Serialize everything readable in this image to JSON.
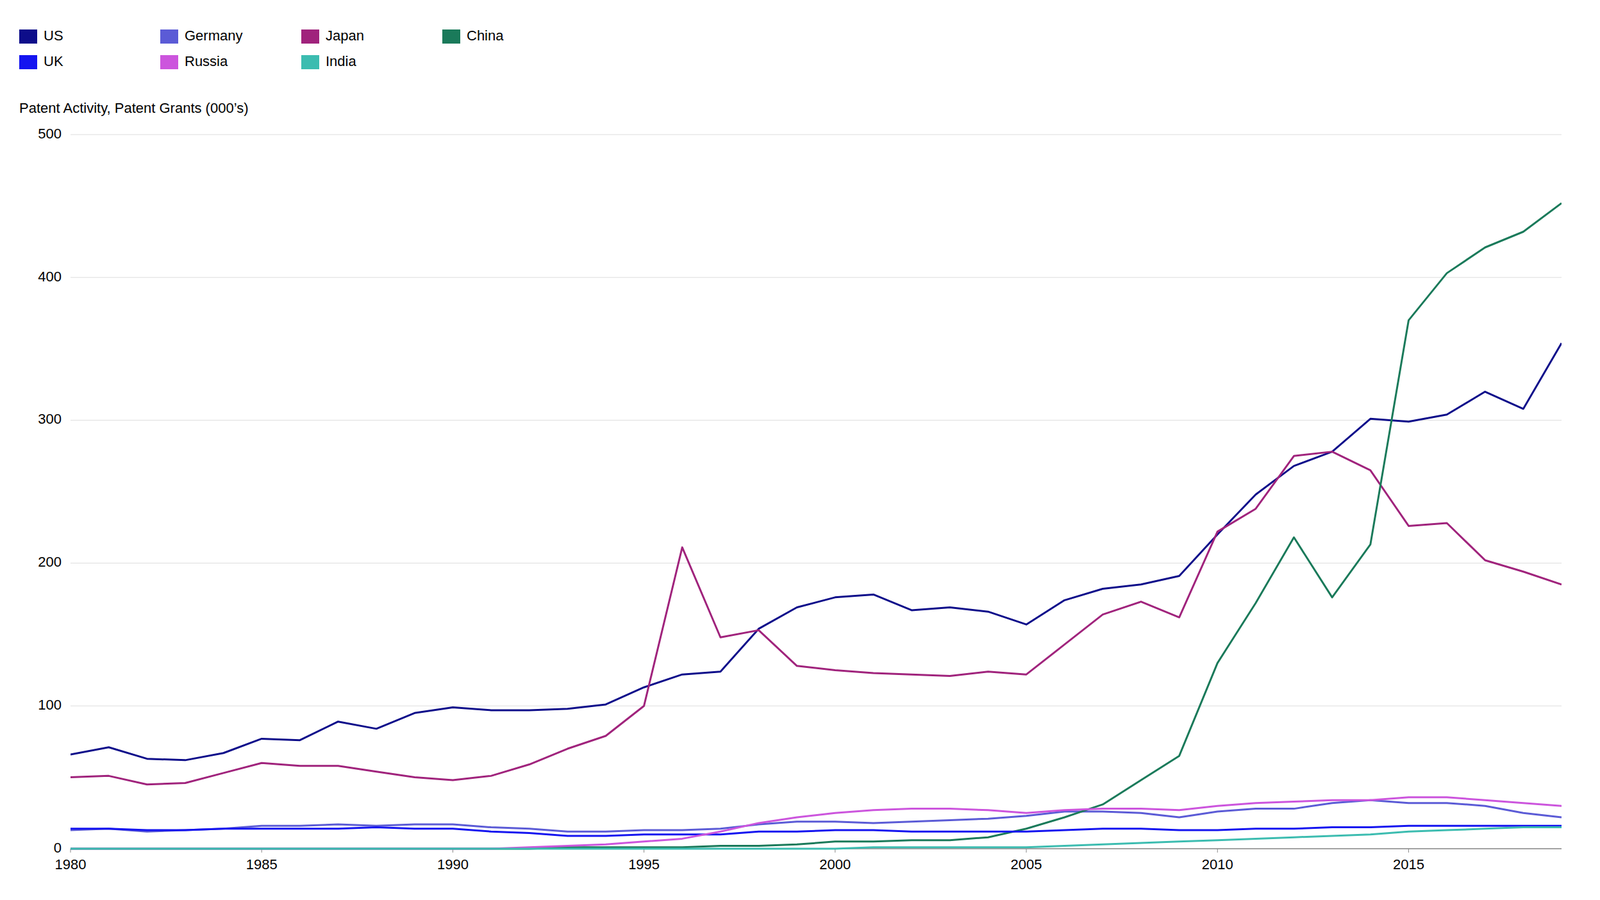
{
  "chart_data": {
    "type": "line",
    "y_label": "Patent Activity, Patent Grants (000’s)",
    "x": [
      1980,
      1981,
      1982,
      1983,
      1984,
      1985,
      1986,
      1987,
      1988,
      1989,
      1990,
      1991,
      1992,
      1993,
      1994,
      1995,
      1996,
      1997,
      1998,
      1999,
      2000,
      2001,
      2002,
      2003,
      2004,
      2005,
      2006,
      2007,
      2008,
      2009,
      2010,
      2011,
      2012,
      2013,
      2014,
      2015,
      2016,
      2017,
      2018,
      2019
    ],
    "series": [
      {
        "name": "US",
        "color": "#0d0d8a",
        "values": [
          66,
          71,
          63,
          62,
          67,
          77,
          76,
          89,
          84,
          95,
          99,
          97,
          97,
          98,
          101,
          113,
          122,
          124,
          154,
          169,
          176,
          178,
          167,
          169,
          166,
          157,
          174,
          182,
          185,
          191,
          220,
          248,
          268,
          278,
          301,
          299,
          304,
          320,
          308,
          354
        ]
      },
      {
        "name": "Germany",
        "color": "#5b5bd6",
        "values": [
          13,
          14,
          12,
          13,
          14,
          16,
          16,
          17,
          16,
          17,
          17,
          15,
          14,
          12,
          12,
          13,
          13,
          14,
          17,
          19,
          19,
          18,
          19,
          20,
          21,
          23,
          26,
          26,
          25,
          22,
          26,
          28,
          28,
          32,
          34,
          32,
          32,
          30,
          25,
          22
        ]
      },
      {
        "name": "Japan",
        "color": "#a0237c",
        "values": [
          50,
          51,
          45,
          46,
          53,
          60,
          58,
          58,
          54,
          50,
          48,
          51,
          59,
          70,
          79,
          100,
          211,
          148,
          153,
          128,
          125,
          123,
          122,
          121,
          124,
          122,
          143,
          164,
          173,
          162,
          222,
          238,
          275,
          278,
          265,
          226,
          228,
          202,
          194,
          185
        ]
      },
      {
        "name": "China",
        "color": "#1a7a5a",
        "values": [
          0,
          0,
          0,
          0,
          0,
          0,
          0,
          0,
          0,
          0,
          0,
          0,
          0,
          1,
          1,
          1,
          1,
          2,
          2,
          3,
          5,
          5,
          6,
          6,
          8,
          14,
          22,
          31,
          48,
          65,
          130,
          172,
          218,
          176,
          213,
          370,
          403,
          421,
          432,
          452
        ]
      },
      {
        "name": "UK",
        "color": "#1414f0",
        "values": [
          14,
          14,
          13,
          13,
          14,
          14,
          14,
          14,
          15,
          14,
          14,
          12,
          11,
          9,
          9,
          10,
          10,
          10,
          12,
          12,
          13,
          13,
          12,
          12,
          12,
          12,
          13,
          14,
          14,
          13,
          13,
          14,
          14,
          15,
          15,
          16,
          16,
          16,
          16,
          16
        ]
      },
      {
        "name": "Russia",
        "color": "#cc55dd",
        "values": [
          0,
          0,
          0,
          0,
          0,
          0,
          0,
          0,
          0,
          0,
          0,
          0,
          1,
          2,
          3,
          5,
          7,
          12,
          18,
          22,
          25,
          27,
          28,
          28,
          27,
          25,
          27,
          28,
          28,
          27,
          30,
          32,
          33,
          34,
          34,
          36,
          36,
          34,
          32,
          30
        ]
      },
      {
        "name": "India",
        "color": "#3cbcb0",
        "values": [
          0,
          0,
          0,
          0,
          0,
          0,
          0,
          0,
          0,
          0,
          0,
          0,
          0,
          0,
          0,
          0,
          0,
          0,
          0,
          0,
          0,
          1,
          1,
          1,
          1,
          1,
          2,
          3,
          4,
          5,
          6,
          7,
          8,
          9,
          10,
          12,
          13,
          14,
          15,
          15
        ]
      }
    ],
    "xlim": [
      1980,
      2019
    ],
    "xticks": [
      1980,
      1985,
      1990,
      1995,
      2000,
      2005,
      2010,
      2015
    ],
    "ylim": [
      0,
      500
    ],
    "yticks": [
      0,
      100,
      200,
      300,
      400,
      500
    ],
    "grid": true,
    "legend": "top"
  }
}
